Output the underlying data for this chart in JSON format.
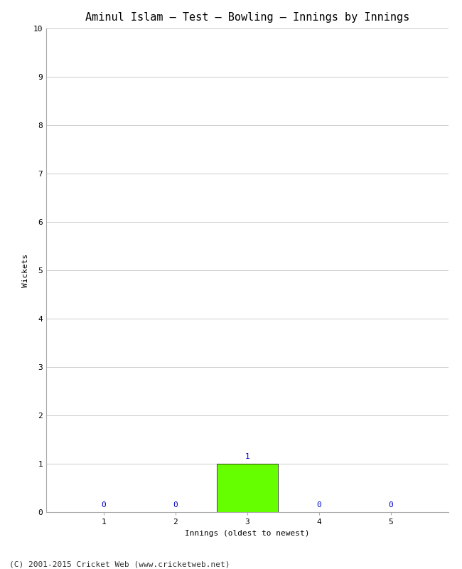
{
  "title": "Aminul Islam – Test – Bowling – Innings by Innings",
  "xlabel": "Innings (oldest to newest)",
  "ylabel": "Wickets",
  "categories": [
    1,
    2,
    3,
    4,
    5
  ],
  "values": [
    0,
    0,
    1,
    0,
    0
  ],
  "bar_color": "#66ff00",
  "bar_edge_color": "#000000",
  "ylim": [
    0,
    10
  ],
  "yticks": [
    0,
    1,
    2,
    3,
    4,
    5,
    6,
    7,
    8,
    9,
    10
  ],
  "xticks": [
    1,
    2,
    3,
    4,
    5
  ],
  "background_color": "#ffffff",
  "plot_bg_color": "#ffffff",
  "grid_color": "#cccccc",
  "label_color": "#0000cc",
  "footer": "(C) 2001-2015 Cricket Web (www.cricketweb.net)",
  "title_fontsize": 11,
  "axis_label_fontsize": 8,
  "tick_fontsize": 8,
  "annotation_fontsize": 8,
  "footer_fontsize": 8,
  "bar_width": 0.85
}
